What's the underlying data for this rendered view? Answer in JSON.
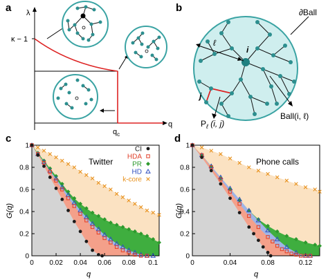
{
  "panels": {
    "a": {
      "letter": "a",
      "y_label": "λ",
      "y_tick": "κ − 1",
      "x_label": "q",
      "x_tick": "q",
      "x_tick_sub": "c"
    },
    "b": {
      "letter": "b",
      "boundary_label": "∂Ball",
      "ell_label": "ℓ",
      "i_label": "i",
      "j_label": "j",
      "path_label": "P",
      "path_sub": "ℓ",
      "path_args": " (i, j)",
      "ball_label": "Ball(i, ℓ)"
    },
    "c": {
      "letter": "c",
      "title": "Twitter",
      "y_label": "G(q)",
      "x_label": "q"
    },
    "d": {
      "letter": "d",
      "title": "Phone calls",
      "y_label": "G(q)",
      "x_label": "q"
    }
  },
  "legend": [
    {
      "label": "CI",
      "color": "#1a1a1a",
      "marker": "circle"
    },
    {
      "label": "HDA",
      "color": "#e0402a",
      "marker": "square"
    },
    {
      "label": "PR",
      "color": "#2e9a2e",
      "marker": "diamond"
    },
    {
      "label": "HD",
      "color": "#2f4fbf",
      "marker": "triangle"
    },
    {
      "label": "k-core",
      "color": "#e8921e",
      "marker": "cross"
    }
  ],
  "chart_data": [
    {
      "type": "line",
      "panel": "c",
      "title": "Twitter",
      "xlabel": "q",
      "ylabel": "G(q)",
      "xlim": [
        0,
        0.105
      ],
      "ylim": [
        0,
        1
      ],
      "x_ticks": [
        "0",
        "0.02",
        "0.04",
        "0.06",
        "0.08",
        "0.1"
      ],
      "y_ticks": [
        "0",
        "0.2",
        "0.4",
        "0.6",
        "0.8",
        "1"
      ],
      "legend_position": "top-right",
      "series": [
        {
          "name": "CI",
          "x": [
            0,
            0.005,
            0.01,
            0.015,
            0.02,
            0.025,
            0.03,
            0.035,
            0.04,
            0.045,
            0.05,
            0.055,
            0.058
          ],
          "y": [
            1.0,
            0.91,
            0.81,
            0.71,
            0.61,
            0.51,
            0.41,
            0.31,
            0.22,
            0.13,
            0.05,
            0.01,
            0.0
          ]
        },
        {
          "name": "HDA",
          "x": [
            0,
            0.005,
            0.01,
            0.015,
            0.02,
            0.025,
            0.03,
            0.035,
            0.04,
            0.045,
            0.05,
            0.055,
            0.06,
            0.065,
            0.07,
            0.075,
            0.08,
            0.085,
            0.09,
            0.095
          ],
          "y": [
            1.0,
            0.92,
            0.84,
            0.76,
            0.68,
            0.6,
            0.52,
            0.45,
            0.38,
            0.32,
            0.26,
            0.21,
            0.16,
            0.12,
            0.08,
            0.05,
            0.03,
            0.01,
            0.0,
            0.0
          ]
        },
        {
          "name": "PR",
          "x": [
            0,
            0.005,
            0.01,
            0.015,
            0.02,
            0.025,
            0.03,
            0.035,
            0.04,
            0.045,
            0.05,
            0.055,
            0.06,
            0.065,
            0.07,
            0.075,
            0.08,
            0.085,
            0.09,
            0.095,
            0.1,
            0.105
          ],
          "y": [
            1.0,
            0.93,
            0.86,
            0.79,
            0.72,
            0.65,
            0.58,
            0.52,
            0.47,
            0.43,
            0.39,
            0.36,
            0.33,
            0.3,
            0.28,
            0.26,
            0.24,
            0.22,
            0.2,
            0.18,
            0.15,
            0.12
          ]
        },
        {
          "name": "HD",
          "x": [
            0,
            0.005,
            0.01,
            0.015,
            0.02,
            0.025,
            0.03,
            0.035,
            0.04,
            0.045,
            0.05,
            0.055,
            0.06,
            0.065,
            0.07,
            0.075,
            0.08,
            0.085,
            0.09,
            0.095,
            0.1
          ],
          "y": [
            1.0,
            0.92,
            0.85,
            0.77,
            0.7,
            0.62,
            0.55,
            0.48,
            0.41,
            0.35,
            0.29,
            0.24,
            0.19,
            0.15,
            0.11,
            0.08,
            0.05,
            0.03,
            0.01,
            0.0,
            0.0
          ]
        },
        {
          "name": "k-core",
          "x": [
            0,
            0.005,
            0.01,
            0.015,
            0.02,
            0.025,
            0.03,
            0.035,
            0.04,
            0.045,
            0.05,
            0.055,
            0.06,
            0.065,
            0.07,
            0.075,
            0.08,
            0.085,
            0.09,
            0.095,
            0.1,
            0.105
          ],
          "y": [
            1.0,
            0.98,
            0.95,
            0.92,
            0.89,
            0.86,
            0.83,
            0.8,
            0.76,
            0.73,
            0.7,
            0.66,
            0.63,
            0.6,
            0.56,
            0.53,
            0.5,
            0.47,
            0.44,
            0.41,
            0.39,
            0.37
          ]
        }
      ]
    },
    {
      "type": "line",
      "panel": "d",
      "title": "Phone calls",
      "xlabel": "q",
      "ylabel": "G(q)",
      "xlim": [
        0,
        0.135
      ],
      "ylim": [
        0,
        1
      ],
      "x_ticks": [
        "0",
        "0.04",
        "0.08",
        "0.12"
      ],
      "y_ticks": [
        "0",
        "0.2",
        "0.4",
        "0.6",
        "0.8",
        "1"
      ],
      "series": [
        {
          "name": "CI",
          "x": [
            0,
            0.01,
            0.02,
            0.03,
            0.04,
            0.05,
            0.06,
            0.065,
            0.07,
            0.075,
            0.08,
            0.083
          ],
          "y": [
            1.0,
            0.89,
            0.77,
            0.65,
            0.52,
            0.39,
            0.26,
            0.2,
            0.14,
            0.08,
            0.03,
            0.0
          ]
        },
        {
          "name": "HDA",
          "x": [
            0,
            0.01,
            0.02,
            0.03,
            0.04,
            0.05,
            0.06,
            0.07,
            0.08,
            0.085,
            0.09,
            0.095,
            0.1,
            0.105,
            0.11,
            0.115,
            0.12,
            0.125
          ],
          "y": [
            1.0,
            0.91,
            0.8,
            0.69,
            0.58,
            0.47,
            0.36,
            0.26,
            0.17,
            0.13,
            0.09,
            0.06,
            0.04,
            0.02,
            0.01,
            0.0,
            0.0,
            0.0
          ]
        },
        {
          "name": "PR",
          "x": [
            0,
            0.01,
            0.02,
            0.03,
            0.04,
            0.05,
            0.06,
            0.07,
            0.08,
            0.09,
            0.1,
            0.11,
            0.12,
            0.13,
            0.135
          ],
          "y": [
            1.0,
            0.91,
            0.81,
            0.7,
            0.6,
            0.5,
            0.41,
            0.33,
            0.27,
            0.22,
            0.18,
            0.15,
            0.12,
            0.1,
            0.09
          ]
        },
        {
          "name": "HD",
          "x": [
            0,
            0.01,
            0.02,
            0.03,
            0.04,
            0.05,
            0.06,
            0.07,
            0.08,
            0.09,
            0.1,
            0.11,
            0.12,
            0.125
          ],
          "y": [
            1.0,
            0.91,
            0.81,
            0.71,
            0.61,
            0.51,
            0.41,
            0.32,
            0.23,
            0.15,
            0.08,
            0.03,
            0.0,
            0.0
          ]
        },
        {
          "name": "k-core",
          "x": [
            0,
            0.01,
            0.02,
            0.03,
            0.04,
            0.05,
            0.06,
            0.07,
            0.08,
            0.09,
            0.1,
            0.11,
            0.12,
            0.13,
            0.135
          ],
          "y": [
            1.0,
            0.98,
            0.95,
            0.92,
            0.88,
            0.84,
            0.8,
            0.77,
            0.74,
            0.71,
            0.68,
            0.65,
            0.62,
            0.6,
            0.58
          ]
        }
      ]
    },
    {
      "type": "line",
      "panel": "a",
      "xlabel": "q",
      "ylabel": "λ",
      "series": [
        {
          "x": [
            0,
            0.2,
            0.4,
            0.6,
            0.8,
            1.0
          ],
          "y": [
            1.0,
            0.8,
            0.64,
            0.5,
            0.37,
            0.27
          ]
        }
      ]
    }
  ]
}
